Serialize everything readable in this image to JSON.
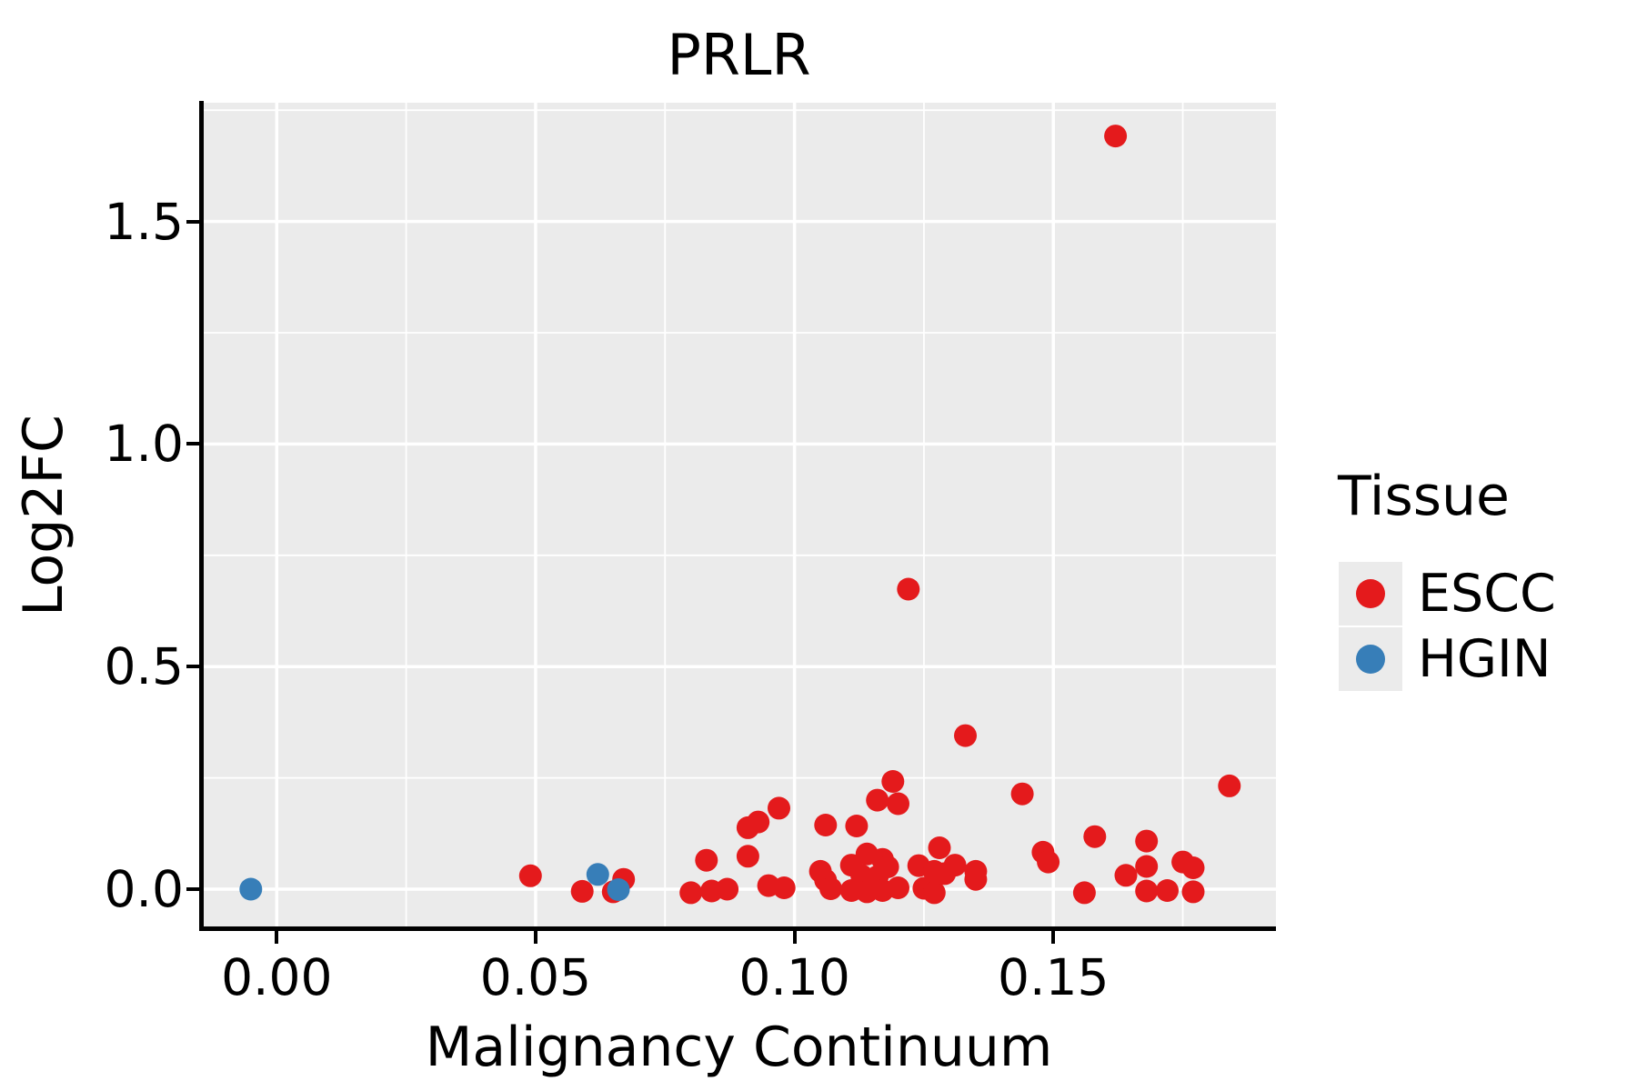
{
  "title": "PRLR",
  "axes": {
    "x": {
      "label": "Malignancy Continuum",
      "tick_labels": [
        "0.00",
        "0.05",
        "0.10",
        "0.15"
      ],
      "tick_values": [
        0.0,
        0.05,
        0.1,
        0.15
      ],
      "minor_gridlines": [
        0.025,
        0.075,
        0.125,
        0.175
      ],
      "range": [
        -0.0145,
        0.1931
      ]
    },
    "y": {
      "label": "Log2FC",
      "tick_labels": [
        "0.0",
        "0.5",
        "1.0",
        "1.5"
      ],
      "tick_values": [
        0.0,
        0.5,
        1.0,
        1.5
      ],
      "minor_gridlines": [
        0.25,
        0.75,
        1.25,
        1.75
      ],
      "range": [
        -0.0899,
        1.7664
      ]
    }
  },
  "legend": {
    "title": "Tissue",
    "entries": [
      {
        "label": "ESCC",
        "color": "#E41A1C"
      },
      {
        "label": "HGIN",
        "color": "#377EB8"
      }
    ]
  },
  "colors": {
    "panel_background": "#EBEBEB",
    "gridline": "#FFFFFF",
    "axis_line": "#000000",
    "text": "#000000",
    "legend_key_background": "#EBEBEB"
  },
  "chart_data": {
    "type": "scatter",
    "title": "PRLR",
    "xlabel": "Malignancy Continuum",
    "ylabel": "Log2FC",
    "xlim": [
      -0.0145,
      0.1931
    ],
    "ylim": [
      -0.0899,
      1.7664
    ],
    "grid": "major-and-minor, white on gray panel",
    "legend_position": "right",
    "marker": "filled circle",
    "series": [
      {
        "name": "ESCC",
        "color": "#E41A1C",
        "points": [
          [
            0.049,
            0.03
          ],
          [
            0.059,
            -0.005
          ],
          [
            0.065,
            -0.006
          ],
          [
            0.067,
            0.022
          ],
          [
            0.08,
            -0.008
          ],
          [
            0.083,
            0.065
          ],
          [
            0.084,
            -0.004
          ],
          [
            0.087,
            0.0
          ],
          [
            0.091,
            0.074
          ],
          [
            0.091,
            0.138
          ],
          [
            0.093,
            0.151
          ],
          [
            0.095,
            0.008
          ],
          [
            0.097,
            0.182
          ],
          [
            0.098,
            0.003
          ],
          [
            0.105,
            0.04
          ],
          [
            0.106,
            0.02
          ],
          [
            0.106,
            0.144
          ],
          [
            0.107,
            0.001
          ],
          [
            0.111,
            0.054
          ],
          [
            0.111,
            -0.003
          ],
          [
            0.112,
            0.142
          ],
          [
            0.113,
            0.03
          ],
          [
            0.114,
            0.079
          ],
          [
            0.114,
            -0.006
          ],
          [
            0.116,
            0.028
          ],
          [
            0.116,
            0.2
          ],
          [
            0.117,
            0.067
          ],
          [
            0.117,
            -0.003
          ],
          [
            0.118,
            0.05
          ],
          [
            0.119,
            0.242
          ],
          [
            0.12,
            0.192
          ],
          [
            0.12,
            0.003
          ],
          [
            0.122,
            0.674
          ],
          [
            0.124,
            0.053
          ],
          [
            0.125,
            0.002
          ],
          [
            0.127,
            0.04
          ],
          [
            0.127,
            -0.008
          ],
          [
            0.128,
            0.093
          ],
          [
            0.129,
            0.035
          ],
          [
            0.131,
            0.054
          ],
          [
            0.133,
            0.345
          ],
          [
            0.135,
            0.04
          ],
          [
            0.135,
            0.022
          ],
          [
            0.144,
            0.214
          ],
          [
            0.148,
            0.083
          ],
          [
            0.149,
            0.061
          ],
          [
            0.156,
            -0.008
          ],
          [
            0.158,
            0.118
          ],
          [
            0.162,
            1.692
          ],
          [
            0.164,
            0.031
          ],
          [
            0.168,
            0.108
          ],
          [
            0.168,
            0.051
          ],
          [
            0.168,
            -0.004
          ],
          [
            0.172,
            -0.003
          ],
          [
            0.175,
            0.061
          ],
          [
            0.177,
            0.048
          ],
          [
            0.177,
            -0.006
          ],
          [
            0.184,
            0.232
          ]
        ]
      },
      {
        "name": "HGIN",
        "color": "#377EB8",
        "points": [
          [
            -0.005,
            0.0
          ],
          [
            0.062,
            0.033
          ],
          [
            0.066,
            -0.001
          ]
        ]
      }
    ]
  }
}
